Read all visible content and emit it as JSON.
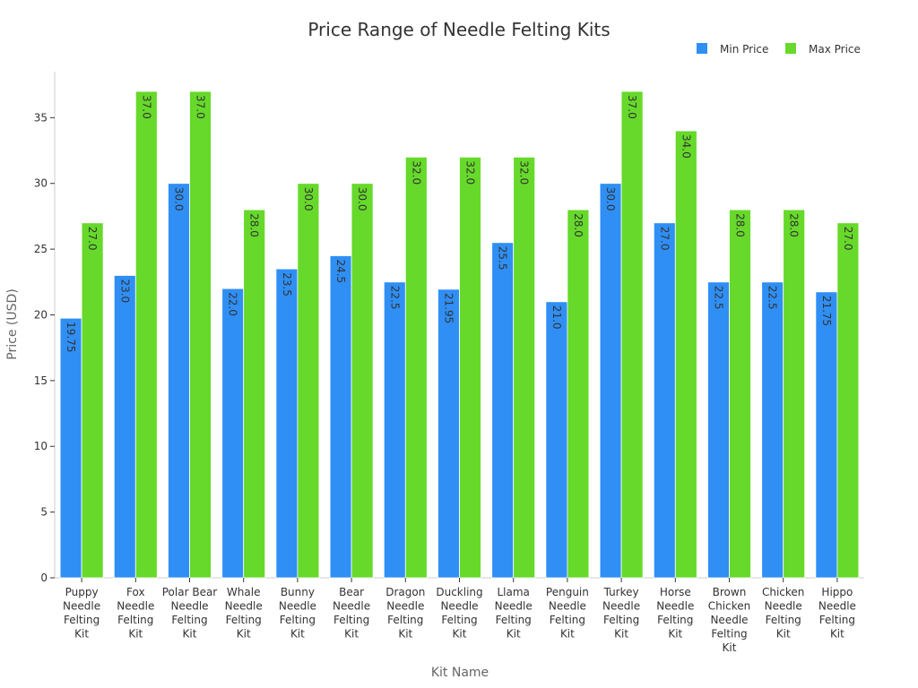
{
  "chart_data": {
    "type": "bar",
    "title": "Price Range of Needle Felting Kits",
    "xlabel": "Kit Name",
    "ylabel": "Price (USD)",
    "ylim": [
      0,
      38.5
    ],
    "yticks": [
      0,
      5,
      10,
      15,
      20,
      25,
      30,
      35
    ],
    "legend_position": "top-right",
    "categories": [
      "Puppy Needle Felting Kit",
      "Fox Needle Felting Kit",
      "Polar Bear Needle Felting Kit",
      "Whale Needle Felting Kit",
      "Bunny Needle Felting Kit",
      "Bear Needle Felting Kit",
      "Dragon Needle Felting Kit",
      "Duckling Needle Felting Kit",
      "Llama Needle Felting Kit",
      "Penguin Needle Felting Kit",
      "Turkey Needle Felting Kit",
      "Horse Needle Felting Kit",
      "Brown Chicken Needle Felting Kit",
      "Chicken Needle Felting Kit",
      "Hippo Needle Felting Kit"
    ],
    "category_lines": [
      [
        "Puppy",
        "Needle",
        "Felting",
        "Kit"
      ],
      [
        "Fox",
        "Needle",
        "Felting",
        "Kit"
      ],
      [
        "Polar Bear",
        "Needle",
        "Felting",
        "Kit"
      ],
      [
        "Whale",
        "Needle",
        "Felting",
        "Kit"
      ],
      [
        "Bunny",
        "Needle",
        "Felting",
        "Kit"
      ],
      [
        "Bear",
        "Needle",
        "Felting",
        "Kit"
      ],
      [
        "Dragon",
        "Needle",
        "Felting",
        "Kit"
      ],
      [
        "Duckling",
        "Needle",
        "Felting",
        "Kit"
      ],
      [
        "Llama",
        "Needle",
        "Felting",
        "Kit"
      ],
      [
        "Penguin",
        "Needle",
        "Felting",
        "Kit"
      ],
      [
        "Turkey",
        "Needle",
        "Felting",
        "Kit"
      ],
      [
        "Horse",
        "Needle",
        "Felting",
        "Kit"
      ],
      [
        "Brown",
        "Chicken",
        "Needle",
        "Felting",
        "Kit"
      ],
      [
        "Chicken",
        "Needle",
        "Felting",
        "Kit"
      ],
      [
        "Hippo",
        "Needle",
        "Felting",
        "Kit"
      ]
    ],
    "series": [
      {
        "name": "Min Price",
        "color": "#2f8ff5",
        "values": [
          19.75,
          23.0,
          30.0,
          22.0,
          23.5,
          24.5,
          22.5,
          21.95,
          25.5,
          21.0,
          30.0,
          27.0,
          22.5,
          22.5,
          21.75
        ],
        "labels": [
          "19.75",
          "23.0",
          "30.0",
          "22.0",
          "23.5",
          "24.5",
          "22.5",
          "21.95",
          "25.5",
          "21.0",
          "30.0",
          "27.0",
          "22.5",
          "22.5",
          "21.75"
        ]
      },
      {
        "name": "Max Price",
        "color": "#66d92a",
        "values": [
          27.0,
          37.0,
          37.0,
          28.0,
          30.0,
          30.0,
          32.0,
          32.0,
          32.0,
          28.0,
          37.0,
          34.0,
          28.0,
          28.0,
          27.0
        ],
        "labels": [
          "27.0",
          "37.0",
          "37.0",
          "28.0",
          "30.0",
          "30.0",
          "32.0",
          "32.0",
          "32.0",
          "28.0",
          "37.0",
          "34.0",
          "28.0",
          "28.0",
          "27.0"
        ]
      }
    ]
  }
}
